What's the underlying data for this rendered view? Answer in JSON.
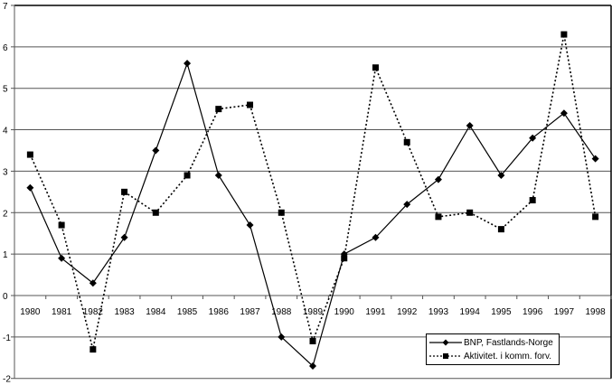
{
  "chart_data": {
    "type": "line",
    "title": "",
    "xlabel": "",
    "ylabel": "",
    "ylim": [
      -2,
      7
    ],
    "yticks": [
      -2,
      -1,
      0,
      1,
      2,
      3,
      4,
      5,
      6,
      7
    ],
    "grid": true,
    "legend_position": "lower right",
    "categories": [
      "1980",
      "1981",
      "1982",
      "1983",
      "1984",
      "1985",
      "1986",
      "1987",
      "1988",
      "1989",
      "1990",
      "1991",
      "1992",
      "1993",
      "1994",
      "1995",
      "1996",
      "1997",
      "1998"
    ],
    "series": [
      {
        "name": "BNP, Fastlands-Norge",
        "style": "solid",
        "marker": "diamond",
        "values": [
          2.6,
          0.9,
          0.3,
          1.4,
          3.5,
          5.6,
          2.9,
          1.7,
          -1.0,
          -1.7,
          1.0,
          1.4,
          2.2,
          2.8,
          4.1,
          2.9,
          3.8,
          4.4,
          3.3
        ]
      },
      {
        "name": "Aktivitet. i komm. forv.",
        "style": "dashed",
        "marker": "square",
        "values": [
          3.4,
          1.7,
          -1.3,
          2.5,
          2.0,
          2.9,
          4.5,
          4.6,
          2.0,
          -1.1,
          0.9,
          5.5,
          3.7,
          1.9,
          2.0,
          1.6,
          2.3,
          6.3,
          1.9
        ]
      }
    ]
  },
  "legend": {
    "items": [
      {
        "label": "BNP, Fastlands-Norge"
      },
      {
        "label": "Aktivitet. i komm. forv."
      }
    ]
  }
}
